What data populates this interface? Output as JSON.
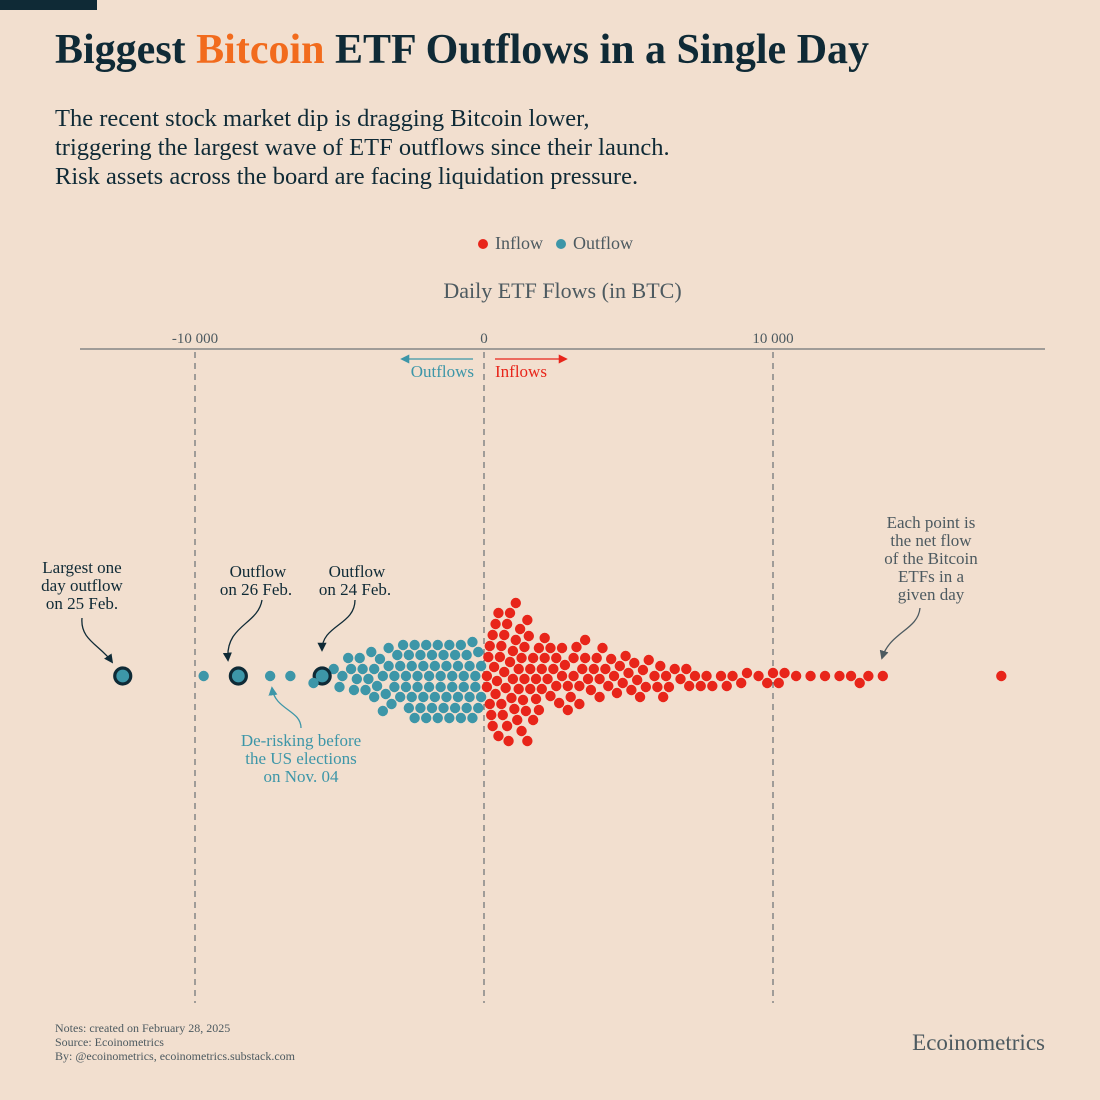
{
  "title": {
    "before": "Biggest ",
    "highlight": "Bitcoin",
    "after": " ETF Outflows in a Single Day"
  },
  "subtitle": [
    "The recent stock market dip is dragging Bitcoin lower,",
    "triggering the largest wave of ETF outflows since their launch.",
    "Risk assets across the board are facing liquidation pressure."
  ],
  "footer": {
    "notes": "Notes: created on February 28, 2025",
    "source": "Source: Ecoinometrics",
    "by": "By: @ecoinometrics, ecoinometrics.substack.com",
    "brand": "Ecoinometrics"
  },
  "colors": {
    "background": "#f2dfcf",
    "title": "#0f2a36",
    "highlight": "#f26b1d",
    "inflow": "#e8251a",
    "outflow": "#3d96a8",
    "annotation": "#4d5a60"
  },
  "chart_data": {
    "type": "scatter",
    "subtype": "beeswarm",
    "xlabel": "Daily ETF Flows (in BTC)",
    "xlim": [
      -14000,
      19500
    ],
    "xticks": [
      {
        "value": -10000,
        "label": "-10 000"
      },
      {
        "value": 0,
        "label": "0"
      },
      {
        "value": 10000,
        "label": "10 000"
      }
    ],
    "grid": "vertical dashed at ticks",
    "legend": {
      "position": "top-center",
      "items": [
        "Inflow",
        "Outflow"
      ]
    },
    "direction_labels": {
      "outflows": "Outflows",
      "inflows": "Inflows"
    },
    "series": [
      {
        "name": "Inflow",
        "color": "#e8251a",
        "values": [
          100,
          100,
          150,
          200,
          200,
          250,
          300,
          300,
          350,
          400,
          400,
          450,
          500,
          500,
          550,
          600,
          600,
          650,
          700,
          700,
          750,
          800,
          800,
          850,
          900,
          900,
          950,
          1000,
          1000,
          1050,
          1100,
          1100,
          1150,
          1200,
          1200,
          1250,
          1300,
          1300,
          1350,
          1400,
          1400,
          1450,
          1500,
          1500,
          1550,
          1600,
          1600,
          1700,
          1700,
          1800,
          1800,
          1900,
          1900,
          2000,
          2000,
          2100,
          2100,
          2200,
          2300,
          2300,
          2400,
          2500,
          2500,
          2600,
          2700,
          2700,
          2800,
          2900,
          2900,
          3000,
          3100,
          3100,
          3200,
          3300,
          3300,
          3400,
          3500,
          3500,
          3600,
          3700,
          3800,
          3900,
          4000,
          4000,
          4100,
          4200,
          4300,
          4400,
          4500,
          4600,
          4700,
          4800,
          4900,
          5000,
          5100,
          5200,
          5300,
          5400,
          5500,
          5600,
          5700,
          5900,
          6000,
          6100,
          6200,
          6300,
          6400,
          6600,
          6800,
          7000,
          7100,
          7300,
          7500,
          7700,
          7900,
          8200,
          8400,
          8600,
          8900,
          9100,
          9500,
          9800,
          10000,
          10200,
          10400,
          10800,
          11300,
          11800,
          12300,
          12700,
          13000,
          13300,
          13800,
          17900
        ]
      },
      {
        "name": "Outflow",
        "color": "#3d96a8",
        "values": [
          -12500,
          -9700,
          -8500,
          -7400,
          -6700,
          -5900,
          -5600,
          -5200,
          -5000,
          -4900,
          -4700,
          -4600,
          -4500,
          -4400,
          -4300,
          -4200,
          -4100,
          -4000,
          -3900,
          -3800,
          -3800,
          -3700,
          -3600,
          -3500,
          -3500,
          -3400,
          -3300,
          -3300,
          -3200,
          -3100,
          -3100,
          -3000,
          -2900,
          -2900,
          -2800,
          -2700,
          -2700,
          -2600,
          -2600,
          -2500,
          -2500,
          -2400,
          -2400,
          -2300,
          -2300,
          -2200,
          -2200,
          -2100,
          -2100,
          -2000,
          -2000,
          -1900,
          -1900,
          -1800,
          -1800,
          -1700,
          -1700,
          -1600,
          -1600,
          -1500,
          -1500,
          -1400,
          -1400,
          -1300,
          -1300,
          -1200,
          -1200,
          -1100,
          -1100,
          -1000,
          -1000,
          -900,
          -900,
          -800,
          -800,
          -700,
          -700,
          -600,
          -600,
          -500,
          -500,
          -400,
          -400,
          -300,
          -300,
          -200,
          -200,
          -100,
          -100
        ]
      }
    ],
    "highlighted": [
      -12500,
      -8500,
      -5600
    ],
    "annotations": [
      {
        "id": "largest",
        "lines": [
          "Largest one",
          "day outflow",
          "on 25 Feb."
        ]
      },
      {
        "id": "feb26",
        "lines": [
          "Outflow",
          "on 26 Feb."
        ]
      },
      {
        "id": "feb24",
        "lines": [
          "Outflow",
          "on 24 Feb."
        ]
      },
      {
        "id": "elections",
        "lines": [
          "De-risking before",
          "the US elections",
          "on Nov. 04"
        ]
      },
      {
        "id": "each",
        "lines": [
          "Each point is",
          "the net flow",
          "of the Bitcoin",
          "ETFs in a",
          "given day"
        ]
      }
    ]
  }
}
